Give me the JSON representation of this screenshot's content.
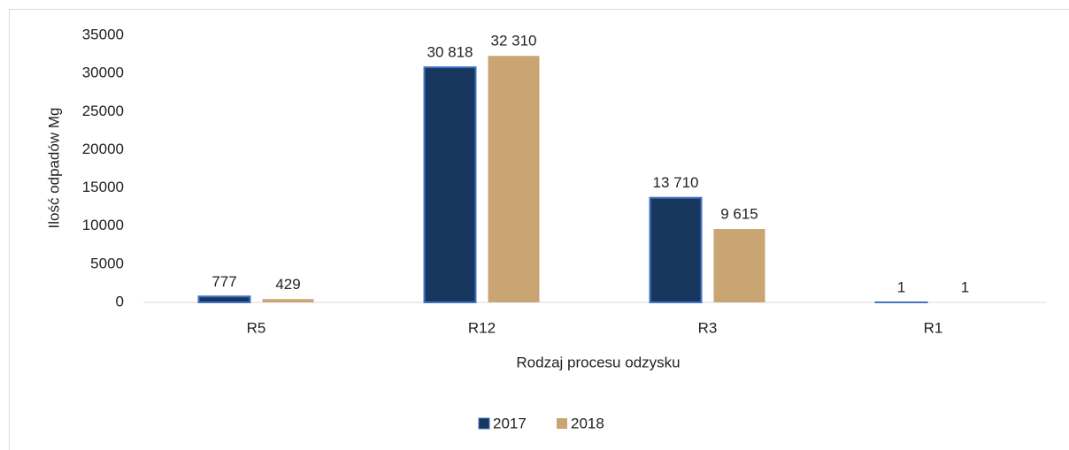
{
  "chart_data": {
    "type": "bar",
    "x_label": "Rodzaj procesu odzysku",
    "y_label": "Ilość odpadów Mg",
    "categories": [
      "R5",
      "R12",
      "R3",
      "R1"
    ],
    "series": [
      {
        "name": "2017",
        "color": "#17375e",
        "values": [
          777,
          30818,
          13710,
          1
        ],
        "value_labels": [
          "777",
          "30 818",
          "13 710",
          "1"
        ]
      },
      {
        "name": "2018",
        "color": "#c9a574",
        "values": [
          429,
          32310,
          9615,
          1
        ],
        "value_labels": [
          "429",
          "32 310",
          "9 615",
          "1"
        ]
      }
    ],
    "ylim": [
      0,
      35000
    ],
    "yticks": [
      0,
      5000,
      10000,
      15000,
      20000,
      25000,
      30000,
      35000
    ],
    "grid": false,
    "legend": "bottom"
  }
}
